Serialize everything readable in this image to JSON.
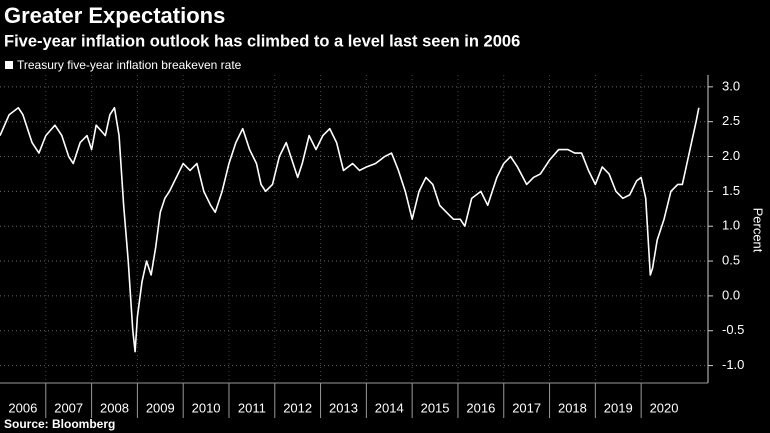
{
  "chart_data": {
    "type": "line",
    "title": "Greater Expectations",
    "subtitle": "Five-year inflation outlook has climbed to a level last seen in 2006",
    "source": "Source: Bloomberg",
    "y_label": "Percent",
    "x": [
      2006.0,
      2006.2,
      2006.4,
      2006.5,
      2006.7,
      2006.85,
      2007.0,
      2007.2,
      2007.35,
      2007.5,
      2007.6,
      2007.75,
      2007.9,
      2008.0,
      2008.1,
      2008.3,
      2008.4,
      2008.5,
      2008.6,
      2008.7,
      2008.8,
      2008.9,
      2008.95,
      2009.0,
      2009.1,
      2009.2,
      2009.3,
      2009.4,
      2009.5,
      2009.6,
      2009.7,
      2009.85,
      2010.0,
      2010.15,
      2010.3,
      2010.45,
      2010.6,
      2010.7,
      2010.85,
      2011.0,
      2011.15,
      2011.3,
      2011.45,
      2011.6,
      2011.7,
      2011.8,
      2011.95,
      2012.1,
      2012.25,
      2012.4,
      2012.5,
      2012.6,
      2012.75,
      2012.9,
      2013.05,
      2013.2,
      2013.35,
      2013.5,
      2013.7,
      2013.85,
      2014.0,
      2014.2,
      2014.4,
      2014.55,
      2014.7,
      2014.85,
      2015.0,
      2015.15,
      2015.3,
      2015.45,
      2015.6,
      2015.75,
      2015.9,
      2016.05,
      2016.15,
      2016.3,
      2016.5,
      2016.65,
      2016.85,
      2017.0,
      2017.15,
      2017.3,
      2017.5,
      2017.65,
      2017.8,
      2018.0,
      2018.2,
      2018.4,
      2018.55,
      2018.7,
      2018.85,
      2019.0,
      2019.15,
      2019.3,
      2019.45,
      2019.6,
      2019.75,
      2019.9,
      2020.0,
      2020.1,
      2020.2,
      2020.25,
      2020.35,
      2020.5,
      2020.65,
      2020.8,
      2020.9,
      2021.0,
      2021.1,
      2021.2,
      2021.26
    ],
    "series": [
      {
        "name": "Treasury five-year inflation breakeven rate",
        "color": "#ffffff",
        "values": [
          2.3,
          2.6,
          2.7,
          2.6,
          2.2,
          2.05,
          2.3,
          2.45,
          2.3,
          2.0,
          1.9,
          2.2,
          2.3,
          2.1,
          2.45,
          2.3,
          2.6,
          2.7,
          2.3,
          1.3,
          0.5,
          -0.5,
          -0.8,
          -0.3,
          0.2,
          0.5,
          0.3,
          0.7,
          1.2,
          1.4,
          1.5,
          1.7,
          1.9,
          1.8,
          1.9,
          1.5,
          1.3,
          1.2,
          1.5,
          1.9,
          2.2,
          2.4,
          2.1,
          1.9,
          1.6,
          1.5,
          1.6,
          2.0,
          2.2,
          1.9,
          1.7,
          1.9,
          2.3,
          2.1,
          2.3,
          2.4,
          2.2,
          1.8,
          1.9,
          1.8,
          1.85,
          1.9,
          2.0,
          2.05,
          1.8,
          1.5,
          1.1,
          1.5,
          1.7,
          1.6,
          1.3,
          1.2,
          1.1,
          1.1,
          1.0,
          1.4,
          1.5,
          1.3,
          1.7,
          1.9,
          2.0,
          1.85,
          1.6,
          1.7,
          1.75,
          1.95,
          2.1,
          2.1,
          2.05,
          2.05,
          1.8,
          1.6,
          1.85,
          1.75,
          1.5,
          1.4,
          1.45,
          1.65,
          1.7,
          1.4,
          0.3,
          0.4,
          0.8,
          1.1,
          1.5,
          1.6,
          1.6,
          1.9,
          2.2,
          2.5,
          2.7
        ]
      }
    ],
    "xlim": [
      2006,
      2021.46
    ],
    "xticks": [
      2006,
      2007,
      2008,
      2009,
      2010,
      2011,
      2012,
      2013,
      2014,
      2015,
      2016,
      2017,
      2018,
      2019,
      2020
    ],
    "ylim": [
      -1.25,
      3.17
    ],
    "yticks": [
      {
        "value": 3,
        "label": "3.0"
      },
      2.5,
      {
        "value": 2,
        "label": "2.0"
      },
      1.5,
      {
        "value": 1,
        "label": "1.0"
      },
      0.5,
      {
        "value": 0,
        "label": "0.0"
      },
      -0.5,
      {
        "value": -1,
        "label": "-1.0"
      }
    ],
    "grid": true
  }
}
